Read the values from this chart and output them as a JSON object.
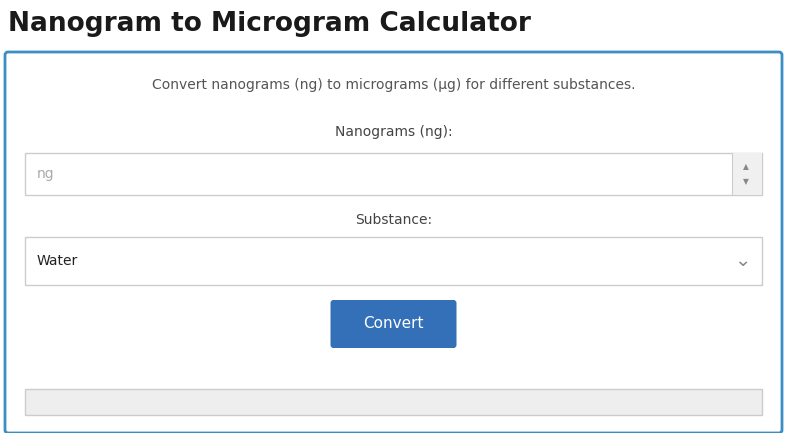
{
  "title": "Nanogram to Microgram Calculator",
  "subtitle": "Convert nanograms (ng) to micrograms (μg) for different substances.",
  "label_ng": "Nanograms (ng):",
  "input_placeholder": "ng",
  "label_substance": "Substance:",
  "dropdown_value": "Water",
  "button_text": "Convert",
  "bg_color": "#ffffff",
  "title_color": "#1a1a1a",
  "subtitle_color": "#555555",
  "box_border_color": "#3a8ec4",
  "input_border_color": "#cccccc",
  "input_bg": "#ffffff",
  "input_text_color": "#aaaaaa",
  "dropdown_bg": "#ffffff",
  "dropdown_text_color": "#222222",
  "button_bg": "#3370b8",
  "button_text_color": "#ffffff",
  "result_bar_bg": "#eeeeee",
  "label_color": "#444444",
  "fig_bg": "#ffffff",
  "title_fontsize": 19,
  "subtitle_fontsize": 10,
  "label_fontsize": 10,
  "input_fontsize": 10,
  "button_fontsize": 11
}
